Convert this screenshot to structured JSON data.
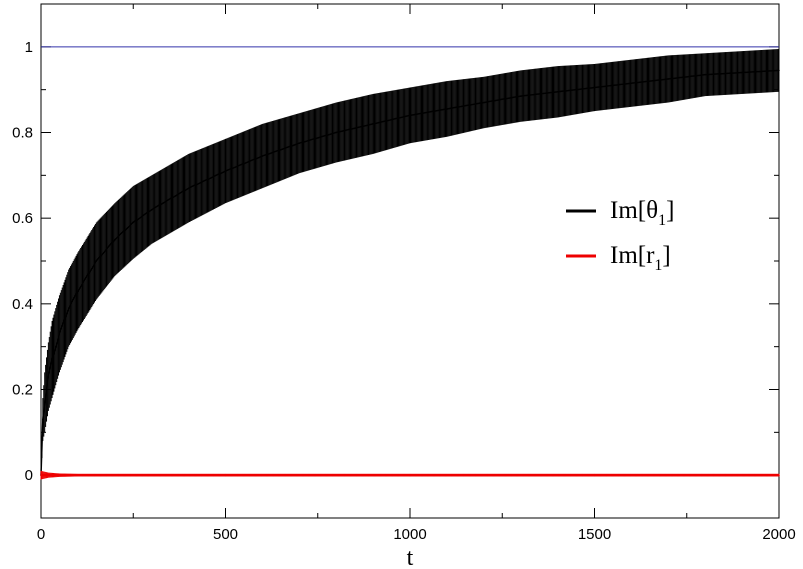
{
  "chart_data": {
    "type": "line",
    "xlabel": "t",
    "ylabel": "",
    "title": "",
    "xlim": [
      0,
      2000
    ],
    "ylim": [
      -0.1,
      1.1
    ],
    "xticks": [
      0,
      500,
      1000,
      1500,
      2000
    ],
    "yticks": [
      0,
      0.2,
      0.4,
      0.6,
      0.8,
      1
    ],
    "xtick_labels": [
      "0",
      "500",
      "1000",
      "1500",
      "2000"
    ],
    "ytick_labels": [
      "0",
      "0.2",
      "0.4",
      "0.6",
      "0.8",
      "1"
    ],
    "grid": false,
    "legend_position": "right",
    "reference_line": {
      "y": 1,
      "color": "#3333aa"
    },
    "series": [
      {
        "name": "Im[θ1]",
        "legend_main": "Im[θ",
        "legend_sub": "1",
        "legend_close": "]",
        "color": "#000000",
        "x": [
          0,
          5,
          10,
          20,
          30,
          40,
          50,
          75,
          100,
          150,
          200,
          250,
          300,
          400,
          500,
          600,
          700,
          800,
          900,
          1000,
          1100,
          1200,
          1300,
          1400,
          1500,
          1600,
          1700,
          1800,
          1900,
          2000
        ],
        "y": [
          0.0,
          0.13,
          0.17,
          0.23,
          0.27,
          0.3,
          0.33,
          0.39,
          0.43,
          0.5,
          0.55,
          0.59,
          0.62,
          0.67,
          0.71,
          0.745,
          0.775,
          0.8,
          0.82,
          0.84,
          0.855,
          0.87,
          0.885,
          0.895,
          0.905,
          0.915,
          0.925,
          0.935,
          0.94,
          0.945
        ],
        "err": [
          0.0,
          0.05,
          0.07,
          0.08,
          0.09,
          0.09,
          0.09,
          0.09,
          0.09,
          0.09,
          0.085,
          0.085,
          0.08,
          0.08,
          0.075,
          0.075,
          0.07,
          0.07,
          0.07,
          0.065,
          0.065,
          0.06,
          0.06,
          0.06,
          0.055,
          0.055,
          0.055,
          0.05,
          0.05,
          0.05
        ]
      },
      {
        "name": "Im[r1]",
        "legend_main": "Im[r",
        "legend_sub": "1",
        "legend_close": "]",
        "color": "#ee0000",
        "x": [
          0,
          10,
          20,
          50,
          100,
          500,
          1000,
          1500,
          2000
        ],
        "y": [
          0.0,
          0.0,
          0.0,
          0.0,
          0.0,
          0.0,
          0.0,
          0.0,
          0.0
        ],
        "err": [
          0.01,
          0.008,
          0.006,
          0.004,
          0.003,
          0.003,
          0.003,
          0.003,
          0.003
        ]
      }
    ]
  }
}
